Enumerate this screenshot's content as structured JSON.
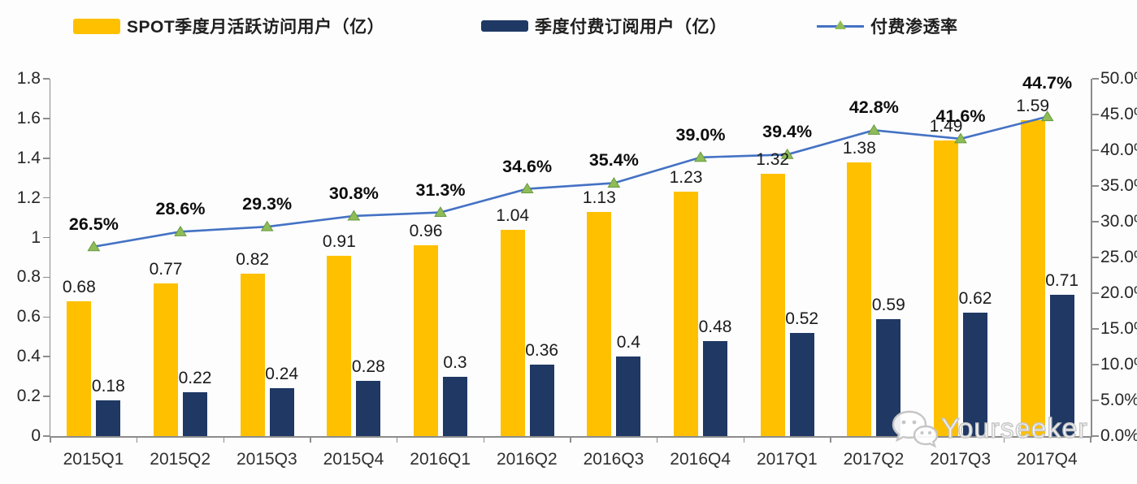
{
  "legend": {
    "items": [
      {
        "label": "SPOT季度月活跃访问用户（亿）",
        "swatch": "bar",
        "color": "#FFC000"
      },
      {
        "label": "季度付费订阅用户（亿）",
        "swatch": "bar",
        "color": "#1F3864"
      },
      {
        "label": "付费渗透率",
        "swatch": "line-triangle-marker",
        "color": "#4472C4"
      }
    ]
  },
  "watermark": {
    "text": "Yourseeker",
    "icon": "wechat-icon"
  },
  "colors": {
    "bar_mau": "#FFC000",
    "bar_subs": "#1F3864",
    "line": "#4472C4",
    "marker_fill": "#8FBC56",
    "marker_stroke": "#679A41",
    "axis": "#8C8C8C"
  },
  "chart_data": {
    "type": "bar",
    "subtype": "grouped-bars-with-line-combo",
    "title": "",
    "categories": [
      "2015Q1",
      "2015Q2",
      "2015Q3",
      "2015Q4",
      "2016Q1",
      "2016Q2",
      "2016Q3",
      "2016Q4",
      "2017Q1",
      "2017Q2",
      "2017Q3",
      "2017Q4"
    ],
    "series": [
      {
        "name": "SPOT季度月活跃访问用户（亿）",
        "type": "bar",
        "axis": "left",
        "color": "#FFC000",
        "values": [
          0.68,
          0.77,
          0.82,
          0.91,
          0.96,
          1.04,
          1.13,
          1.23,
          1.32,
          1.38,
          1.49,
          1.59
        ],
        "labels": [
          "0.68",
          "0.77",
          "0.82",
          "0.91",
          "0.96",
          "1.04",
          "1.13",
          "1.23",
          "1.32",
          "1.38",
          "1.49",
          "1.59"
        ]
      },
      {
        "name": "季度付费订阅用户（亿）",
        "type": "bar",
        "axis": "left",
        "color": "#1F3864",
        "values": [
          0.18,
          0.22,
          0.24,
          0.28,
          0.3,
          0.36,
          0.4,
          0.48,
          0.52,
          0.59,
          0.62,
          0.71
        ],
        "labels": [
          "0.18",
          "0.22",
          "0.24",
          "0.28",
          "0.3",
          "0.36",
          "0.4",
          "0.48",
          "0.52",
          "0.59",
          "0.62",
          "0.71"
        ]
      },
      {
        "name": "付费渗透率",
        "type": "line",
        "axis": "right",
        "color": "#4472C4",
        "marker": "triangle",
        "values": [
          26.5,
          28.6,
          29.3,
          30.8,
          31.3,
          34.6,
          35.4,
          39.0,
          39.4,
          42.8,
          41.6,
          44.7
        ],
        "labels": [
          "26.5%",
          "28.6%",
          "29.3%",
          "30.8%",
          "31.3%",
          "34.6%",
          "35.4%",
          "39.0%",
          "39.4%",
          "42.8%",
          "41.6%",
          "44.7%"
        ]
      }
    ],
    "left_axis": {
      "min": 0,
      "max": 1.8,
      "ticks": [
        "1.8",
        "1.6",
        "1.4",
        "1.2",
        "1",
        "0.8",
        "0.6",
        "0.4",
        "0.2",
        "0"
      ]
    },
    "right_axis": {
      "min": 0,
      "max": 50,
      "ticks": [
        "50.0%",
        "45.0%",
        "40.0%",
        "35.0%",
        "30.0%",
        "25.0%",
        "20.0%",
        "15.0%",
        "10.0%",
        "5.0%",
        "0.0%"
      ]
    },
    "grid": false,
    "legend_position": "top"
  }
}
